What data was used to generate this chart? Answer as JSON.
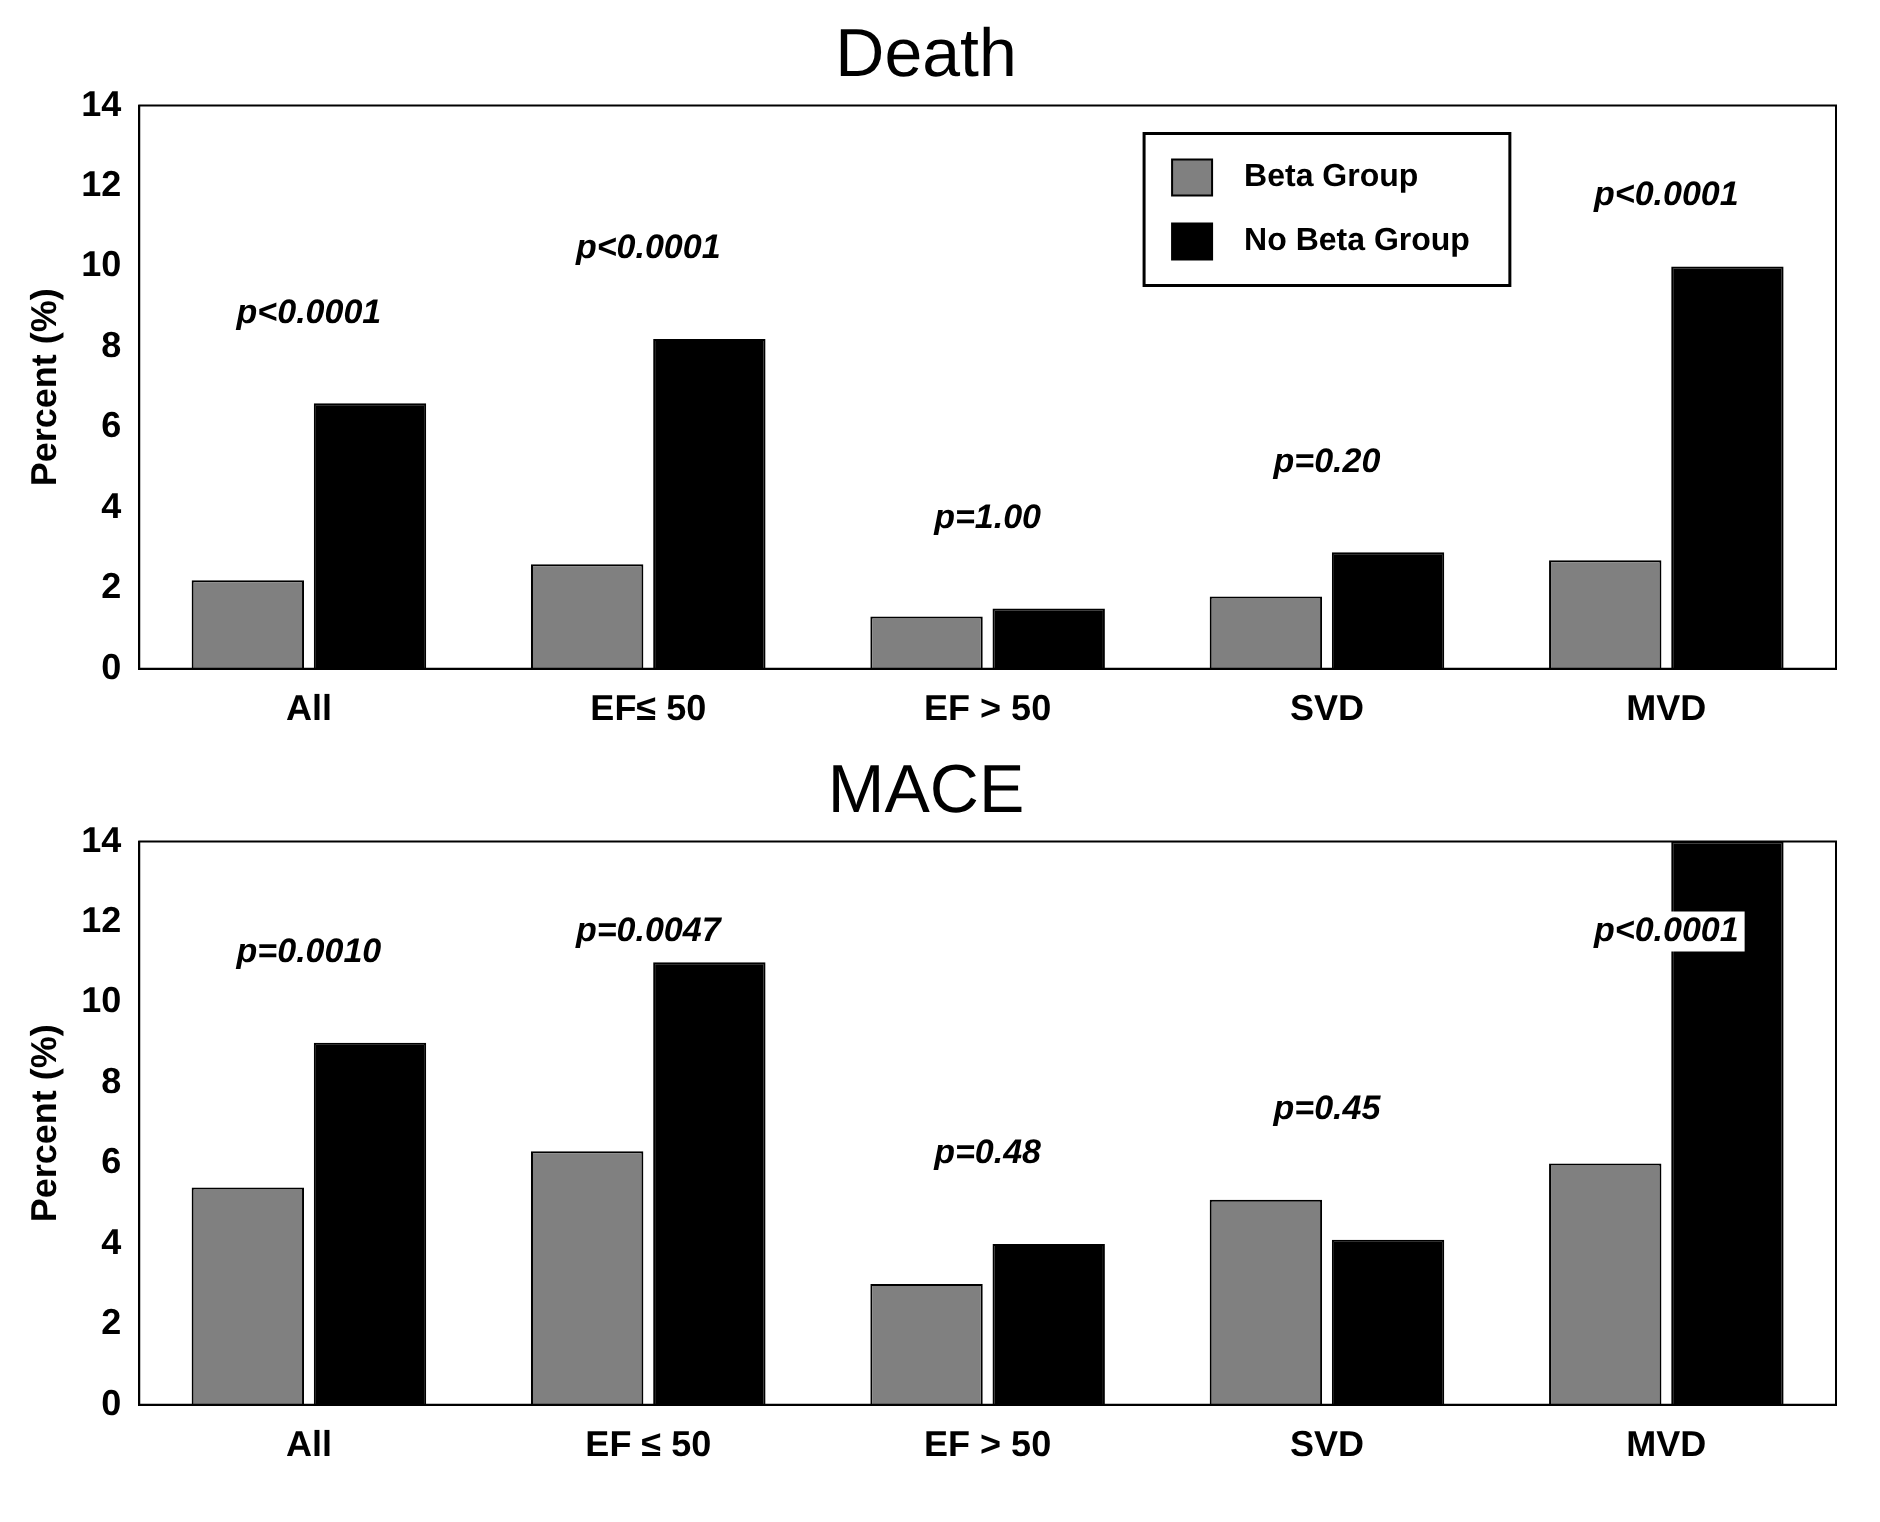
{
  "chart_data": [
    {
      "type": "bar",
      "title": "Death",
      "ylabel": "Percent (%)",
      "categories": [
        "All",
        "EF≤ 50",
        "EF > 50",
        "SVD",
        "MVD"
      ],
      "series": [
        {
          "name": "Beta Group",
          "color": "#808080",
          "values": [
            2.2,
            2.6,
            1.3,
            1.8,
            2.7
          ]
        },
        {
          "name": "No Beta Group",
          "color": "#000000",
          "values": [
            6.6,
            8.2,
            1.5,
            2.9,
            10.0
          ]
        }
      ],
      "ylim": [
        0,
        14
      ],
      "yticks": [
        0,
        2,
        4,
        6,
        8,
        10,
        12,
        14
      ],
      "grid": false,
      "legend": "top right",
      "annotations": [
        "p<0.0001",
        "p<0.0001",
        "p=1.00",
        "p=0.20",
        "p<0.0001"
      ]
    },
    {
      "type": "bar",
      "title": "MACE",
      "ylabel": "Percent (%)",
      "categories": [
        "All",
        "EF ≤ 50",
        "EF > 50",
        "SVD",
        "MVD"
      ],
      "series": [
        {
          "color": "#808080",
          "values": [
            5.4,
            6.3,
            3.0,
            5.1,
            6.0
          ]
        },
        {
          "color": "#000000",
          "values": [
            9.0,
            11.0,
            4.0,
            4.1,
            14.0
          ]
        }
      ],
      "ylim": [
        0,
        14
      ],
      "yticks": [
        0,
        2,
        4,
        6,
        8,
        10,
        12,
        14
      ],
      "grid": false,
      "legend": false,
      "annotations": [
        "p=0.0010",
        "p=0.0047",
        "p=0.48",
        "p=0.45",
        "p<0.0001"
      ]
    }
  ]
}
